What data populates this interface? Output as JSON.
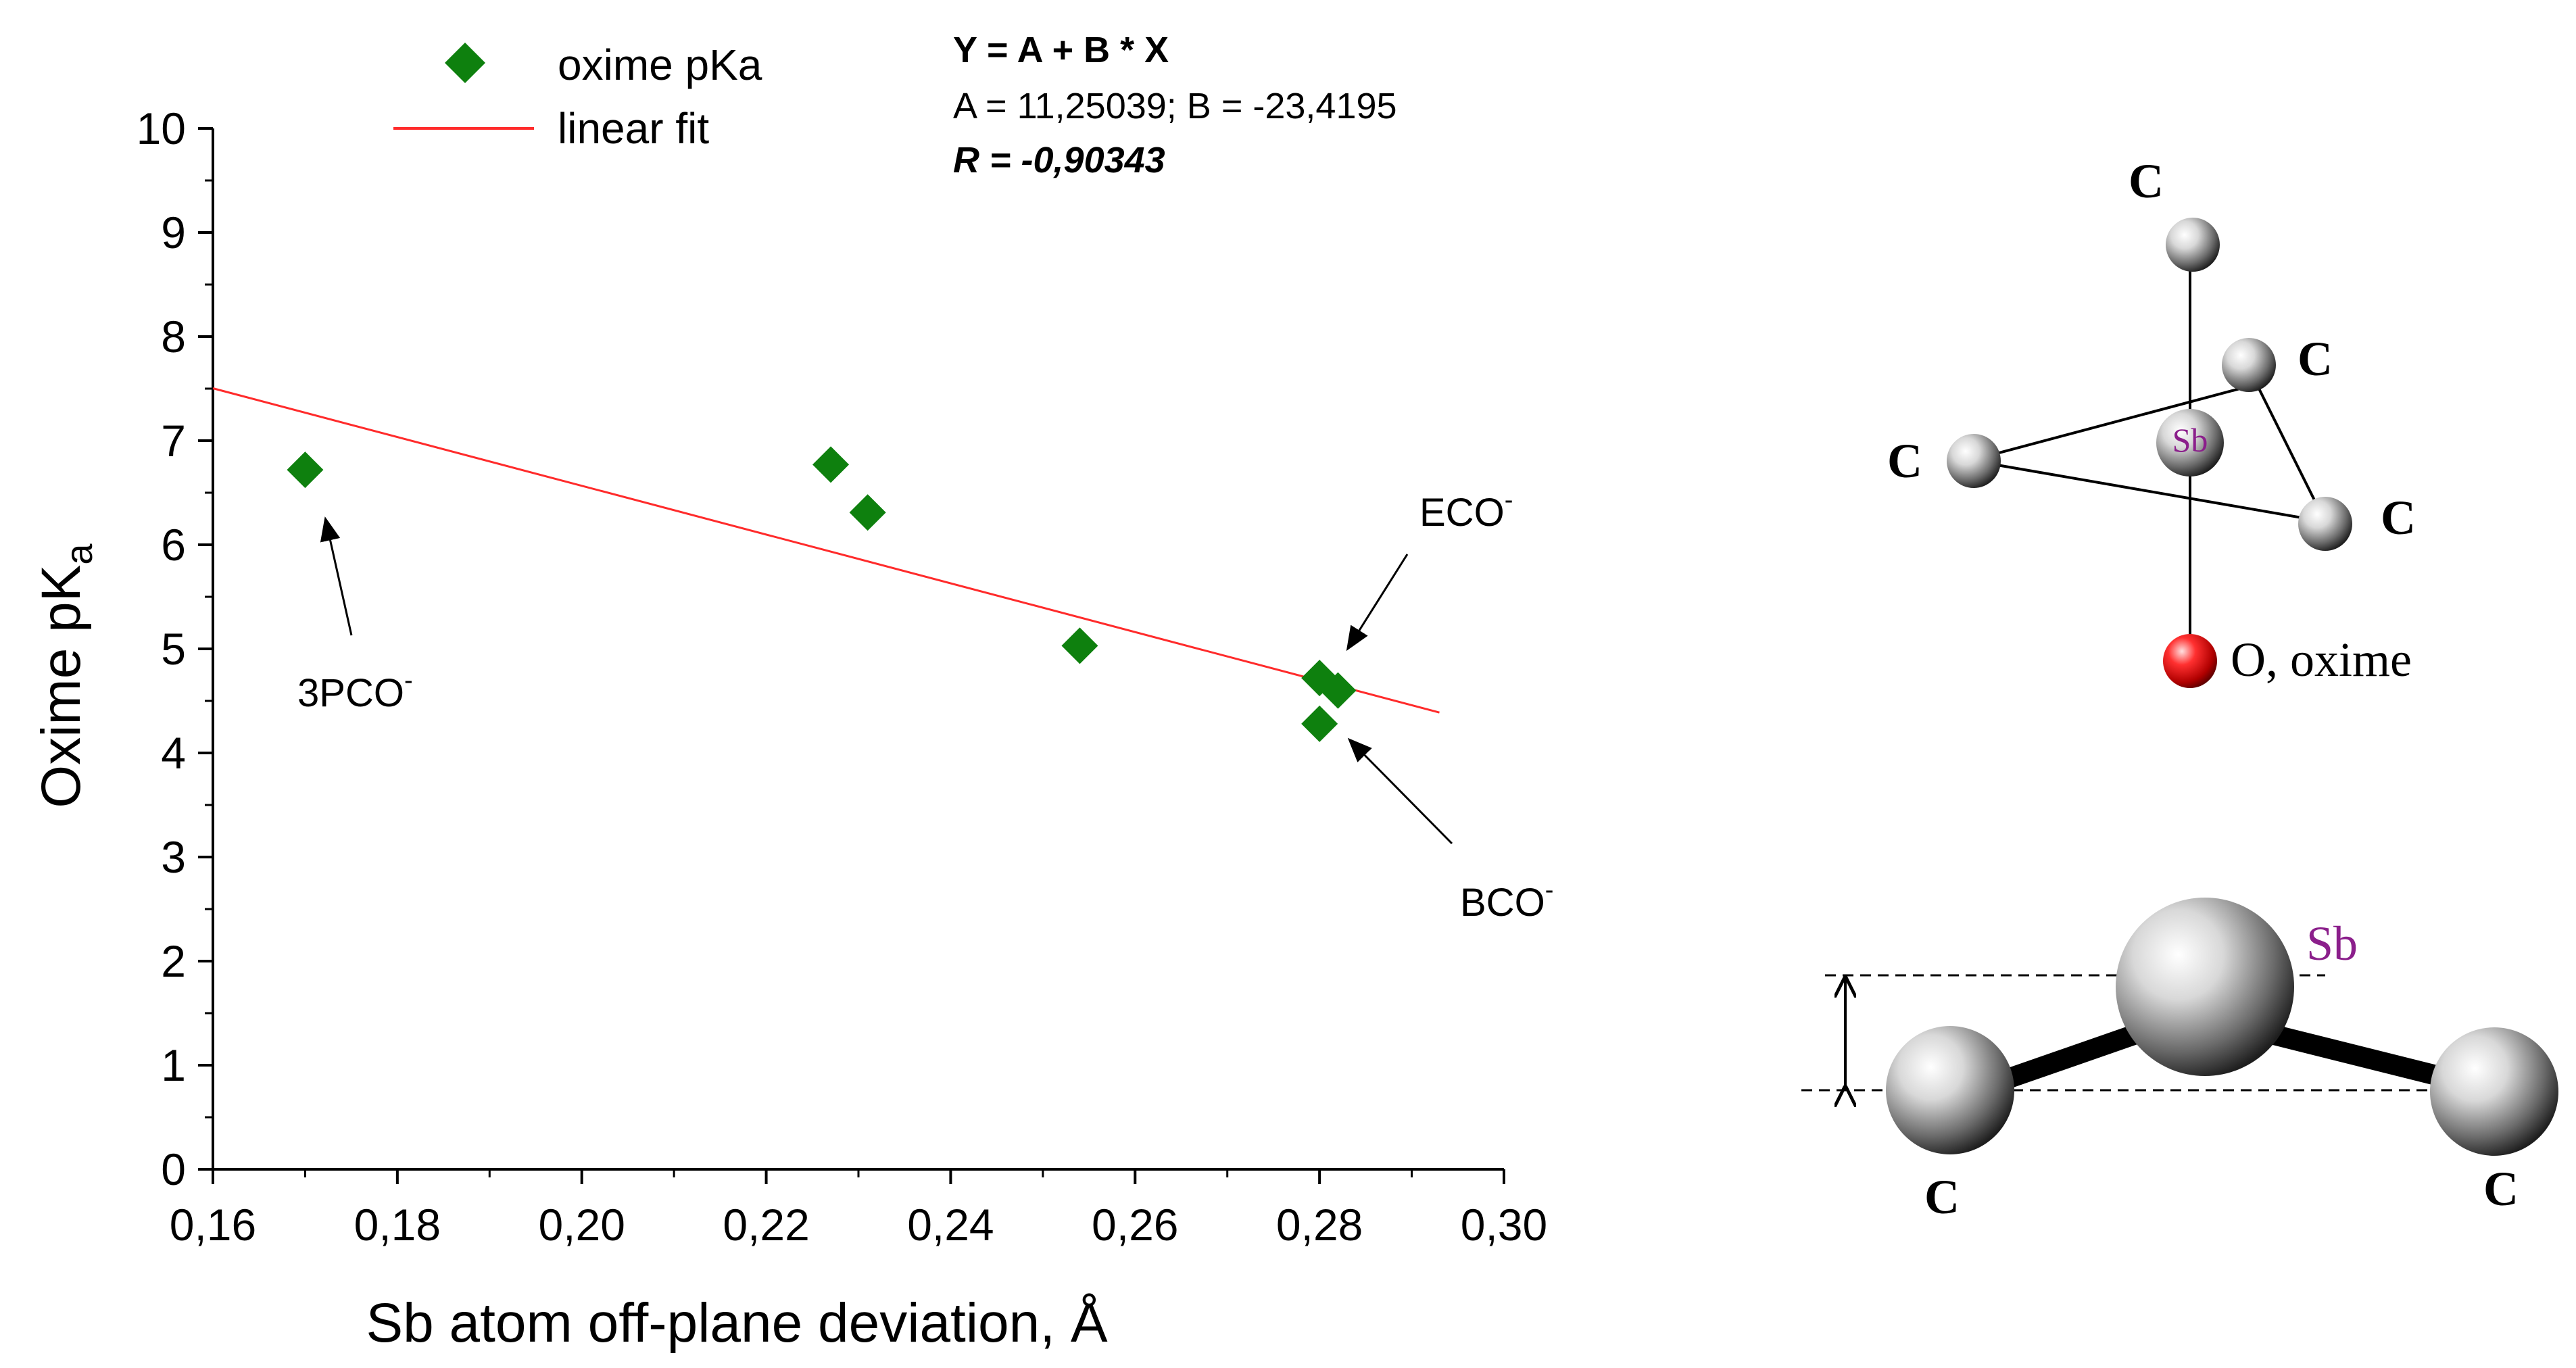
{
  "chart_data": {
    "type": "scatter",
    "xlabel": "Sb atom off-plane deviation, Å",
    "ylabel_main": "Oxime pK",
    "ylabel_sub": "a",
    "xlim": [
      0.16,
      0.3
    ],
    "ylim": [
      0,
      10
    ],
    "x_ticks": [
      0.16,
      0.18,
      0.2,
      0.22,
      0.24,
      0.26,
      0.28,
      0.3
    ],
    "x_tick_labels": [
      "0,16",
      "0,18",
      "0,20",
      "0,22",
      "0,24",
      "0,26",
      "0,28",
      "0,30"
    ],
    "y_ticks": [
      0,
      1,
      2,
      3,
      4,
      5,
      6,
      7,
      8,
      9,
      10
    ],
    "y_tick_labels": [
      "0",
      "1",
      "2",
      "3",
      "4",
      "5",
      "6",
      "7",
      "8",
      "9",
      "10"
    ],
    "series": [
      {
        "name": "oxime pKa",
        "marker": "diamond",
        "color": "#0e800e",
        "x": [
          0.17,
          0.227,
          0.231,
          0.254,
          0.28,
          0.282,
          0.28
        ],
        "y": [
          6.72,
          6.77,
          6.31,
          5.03,
          4.72,
          4.6,
          4.28
        ]
      }
    ],
    "fit": {
      "name": "linear fit",
      "color": "#ff2b2b",
      "A": 11.25039,
      "B": -23.4195,
      "x_range": [
        0.16,
        0.293
      ]
    },
    "legend": {
      "position": "top-left",
      "entries": [
        "oxime pKa",
        "linear fit"
      ]
    },
    "fit_text": {
      "equation": "Y = A + B * X",
      "params": "A = 11,25039; B = -23,4195",
      "r_label": "R = -0,90343"
    },
    "annotations": [
      {
        "main": "3PCO",
        "sup": "-",
        "target_x": 0.17,
        "target_y": 6.72
      },
      {
        "main": "ECO",
        "sup": "-",
        "target_x": 0.281,
        "target_y": 4.7
      },
      {
        "main": "BCO",
        "sup": "-",
        "target_x": 0.281,
        "target_y": 4.3
      }
    ]
  },
  "colors": {
    "marker": "#0e800e",
    "fit_line": "#ff2b2b",
    "sb_label": "#8b1f8b",
    "oxygen": "#ff1a1a"
  },
  "molecule_top": {
    "atoms": [
      "C",
      "C",
      "C",
      "C",
      "Sb"
    ],
    "oxygen_label": "O, oxime"
  },
  "molecule_bottom": {
    "sb_label": "Sb",
    "c_left": "C",
    "c_right": "C"
  }
}
